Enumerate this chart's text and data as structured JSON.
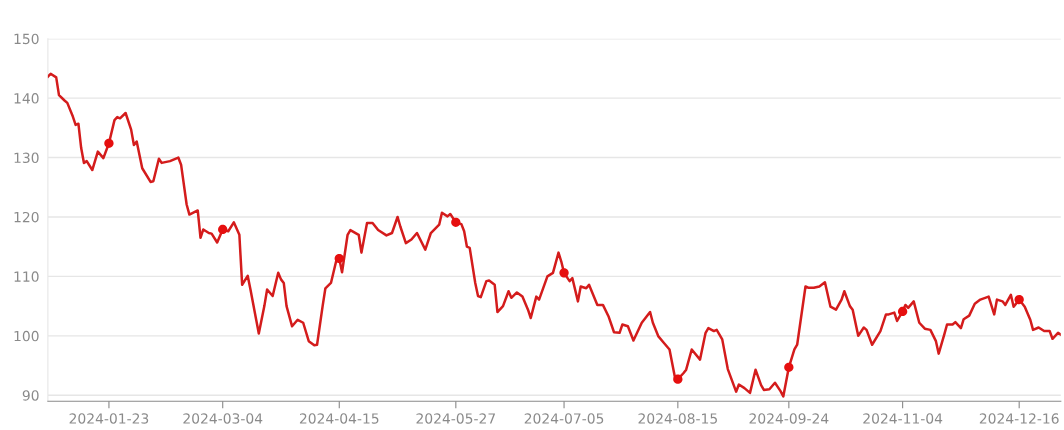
{
  "chart_data": {
    "type": "line",
    "ylim": [
      89,
      150
    ],
    "yticks": [
      90,
      100,
      110,
      120,
      130,
      140,
      150
    ],
    "xlim": [
      "2024-01-01",
      "2024-12-31"
    ],
    "xticks": [
      {
        "value": "2024-01-23",
        "label": "2024-01-23"
      },
      {
        "value": "2024-03-04",
        "label": "2024-03-04"
      },
      {
        "value": "2024-04-15",
        "label": "2024-04-15"
      },
      {
        "value": "2024-05-27",
        "label": "2024-05-27"
      },
      {
        "value": "2024-07-05",
        "label": "2024-07-05"
      },
      {
        "value": "2024-08-15",
        "label": "2024-08-15"
      },
      {
        "value": "2024-09-24",
        "label": "2024-09-24"
      },
      {
        "value": "2024-11-04",
        "label": "2024-11-04"
      },
      {
        "value": "2024-12-16",
        "label": "2024-12-16"
      }
    ],
    "grid": "y",
    "line_style": "solid",
    "series": [
      {
        "type": "line",
        "color": "#d41c1c",
        "x": [
          "2024-01-01",
          "2024-01-02",
          "2024-01-04",
          "2024-01-05",
          "2024-01-07",
          "2024-01-08",
          "2024-01-10",
          "2024-01-11",
          "2024-01-12",
          "2024-01-13",
          "2024-01-14",
          "2024-01-15",
          "2024-01-17",
          "2024-01-19",
          "2024-01-21",
          "2024-01-23",
          "2024-01-25",
          "2024-01-26",
          "2024-01-27",
          "2024-01-29",
          "2024-01-31",
          "2024-02-01",
          "2024-02-02",
          "2024-02-04",
          "2024-02-07",
          "2024-02-08",
          "2024-02-10",
          "2024-02-11",
          "2024-02-14",
          "2024-02-17",
          "2024-02-18",
          "2024-02-20",
          "2024-02-21",
          "2024-02-24",
          "2024-02-25",
          "2024-02-26",
          "2024-02-28",
          "2024-02-29",
          "2024-03-02",
          "2024-03-04",
          "2024-03-06",
          "2024-03-08",
          "2024-03-10",
          "2024-03-11",
          "2024-03-13",
          "2024-03-14",
          "2024-03-17",
          "2024-03-19",
          "2024-03-20",
          "2024-03-22",
          "2024-03-24",
          "2024-03-25",
          "2024-03-26",
          "2024-03-27",
          "2024-03-29",
          "2024-03-31",
          "2024-04-02",
          "2024-04-04",
          "2024-04-06",
          "2024-04-07",
          "2024-04-09",
          "2024-04-10",
          "2024-04-12",
          "2024-04-14",
          "2024-04-15",
          "2024-04-16",
          "2024-04-18",
          "2024-04-19",
          "2024-04-22",
          "2024-04-23",
          "2024-04-25",
          "2024-04-27",
          "2024-04-29",
          "2024-05-02",
          "2024-05-04",
          "2024-05-06",
          "2024-05-07",
          "2024-05-09",
          "2024-05-11",
          "2024-05-13",
          "2024-05-16",
          "2024-05-18",
          "2024-05-21",
          "2024-05-22",
          "2024-05-24",
          "2024-05-25",
          "2024-05-27",
          "2024-05-29",
          "2024-05-30",
          "2024-05-31",
          "2024-06-01",
          "2024-06-03",
          "2024-06-04",
          "2024-06-05",
          "2024-06-07",
          "2024-06-08",
          "2024-06-10",
          "2024-06-11",
          "2024-06-13",
          "2024-06-15",
          "2024-06-16",
          "2024-06-18",
          "2024-06-20",
          "2024-06-22",
          "2024-06-23",
          "2024-06-25",
          "2024-06-26",
          "2024-06-29",
          "2024-07-01",
          "2024-07-03",
          "2024-07-04",
          "2024-07-05",
          "2024-07-07",
          "2024-07-08",
          "2024-07-10",
          "2024-07-11",
          "2024-07-13",
          "2024-07-14",
          "2024-07-17",
          "2024-07-19",
          "2024-07-21",
          "2024-07-23",
          "2024-07-25",
          "2024-07-26",
          "2024-07-28",
          "2024-07-30",
          "2024-08-02",
          "2024-08-05",
          "2024-08-06",
          "2024-08-08",
          "2024-08-10",
          "2024-08-12",
          "2024-08-14",
          "2024-08-15",
          "2024-08-17",
          "2024-08-18",
          "2024-08-20",
          "2024-08-23",
          "2024-08-25",
          "2024-08-26",
          "2024-08-28",
          "2024-08-29",
          "2024-08-31",
          "2024-09-02",
          "2024-09-05",
          "2024-09-06",
          "2024-09-08",
          "2024-09-10",
          "2024-09-12",
          "2024-09-14",
          "2024-09-15",
          "2024-09-17",
          "2024-09-19",
          "2024-09-21",
          "2024-09-22",
          "2024-09-24",
          "2024-09-26",
          "2024-09-27",
          "2024-09-30",
          "2024-10-01",
          "2024-10-03",
          "2024-10-05",
          "2024-10-07",
          "2024-10-09",
          "2024-10-11",
          "2024-10-13",
          "2024-10-14",
          "2024-10-16",
          "2024-10-17",
          "2024-10-19",
          "2024-10-21",
          "2024-10-22",
          "2024-10-24",
          "2024-10-27",
          "2024-10-29",
          "2024-10-30",
          "2024-11-01",
          "2024-11-02",
          "2024-11-04",
          "2024-11-05",
          "2024-11-06",
          "2024-11-08",
          "2024-11-10",
          "2024-11-12",
          "2024-11-14",
          "2024-11-16",
          "2024-11-17",
          "2024-11-19",
          "2024-11-20",
          "2024-11-22",
          "2024-11-23",
          "2024-11-25",
          "2024-11-26",
          "2024-11-28",
          "2024-11-30",
          "2024-12-02",
          "2024-12-05",
          "2024-12-07",
          "2024-12-08",
          "2024-12-10",
          "2024-12-11",
          "2024-12-13",
          "2024-12-14",
          "2024-12-16",
          "2024-12-18",
          "2024-12-20",
          "2024-12-21",
          "2024-12-23",
          "2024-12-25",
          "2024-12-27",
          "2024-12-28",
          "2024-12-30",
          "2024-12-31"
        ],
        "values": [
          143.6,
          144.1,
          143.5,
          140.5,
          139.6,
          139.2,
          136.9,
          135.5,
          135.7,
          131.6,
          129.1,
          129.4,
          127.9,
          131.0,
          129.9,
          132.4,
          136.3,
          136.8,
          136.6,
          137.5,
          134.7,
          132.1,
          132.7,
          128.2,
          125.9,
          126.0,
          129.8,
          129.1,
          129.4,
          130.0,
          128.8,
          122.1,
          120.4,
          121.1,
          116.5,
          117.9,
          117.3,
          117.2,
          115.7,
          117.9,
          117.6,
          119.1,
          117.0,
          108.6,
          110.1,
          107.8,
          100.4,
          105.0,
          107.8,
          106.7,
          110.6,
          109.5,
          108.9,
          105.0,
          101.6,
          102.7,
          102.2,
          99.1,
          98.4,
          98.5,
          105.0,
          108.0,
          108.9,
          112.8,
          113.0,
          110.7,
          117.0,
          117.8,
          117.0,
          114.0,
          119.0,
          119.0,
          117.8,
          116.9,
          117.3,
          120.0,
          118.4,
          115.6,
          116.2,
          117.3,
          114.5,
          117.3,
          118.7,
          120.7,
          120.1,
          120.5,
          119.1,
          118.8,
          117.6,
          115.0,
          114.8,
          108.9,
          106.7,
          106.5,
          109.2,
          109.3,
          108.6,
          104.0,
          105.0,
          107.5,
          106.4,
          107.3,
          106.6,
          104.4,
          103.0,
          106.6,
          106.1,
          110.0,
          110.6,
          114.0,
          112.5,
          110.6,
          109.2,
          109.7,
          105.8,
          108.3,
          108.0,
          108.6,
          105.2,
          105.2,
          103.3,
          100.6,
          100.5,
          101.9,
          101.6,
          99.2,
          102.2,
          104.0,
          102.2,
          99.9,
          98.8,
          97.7,
          92.9,
          92.7,
          93.7,
          94.3,
          97.7,
          96.0,
          100.5,
          101.3,
          100.8,
          101.0,
          99.4,
          94.4,
          90.6,
          91.8,
          91.2,
          90.4,
          94.3,
          91.7,
          90.9,
          91.0,
          92.1,
          90.7,
          89.8,
          94.7,
          97.7,
          98.5,
          108.3,
          108.1,
          108.1,
          108.3,
          109.0,
          104.9,
          104.4,
          106.1,
          107.5,
          105.0,
          104.4,
          100.0,
          101.4,
          101.0,
          98.5,
          100.8,
          103.6,
          103.6,
          103.9,
          102.5,
          104.1,
          105.2,
          104.7,
          105.8,
          102.2,
          101.2,
          101.0,
          99.1,
          97.0,
          100.2,
          101.9,
          101.9,
          102.3,
          101.3,
          102.8,
          103.4,
          105.4,
          106.1,
          106.6,
          103.6,
          106.1,
          105.8,
          105.2,
          106.9,
          104.9,
          106.1,
          104.9,
          102.7,
          101.0,
          101.4,
          100.8,
          100.8,
          99.5,
          100.5,
          100.2
        ]
      },
      {
        "type": "scatter",
        "color": "#e60f0f",
        "marker": "circle",
        "x": [
          "2024-01-23",
          "2024-03-04",
          "2024-04-15",
          "2024-05-27",
          "2024-07-05",
          "2024-08-15",
          "2024-09-24",
          "2024-11-04",
          "2024-12-16"
        ],
        "values": [
          132.4,
          117.9,
          113.0,
          119.1,
          110.6,
          92.7,
          94.7,
          104.1,
          106.1
        ]
      }
    ]
  }
}
